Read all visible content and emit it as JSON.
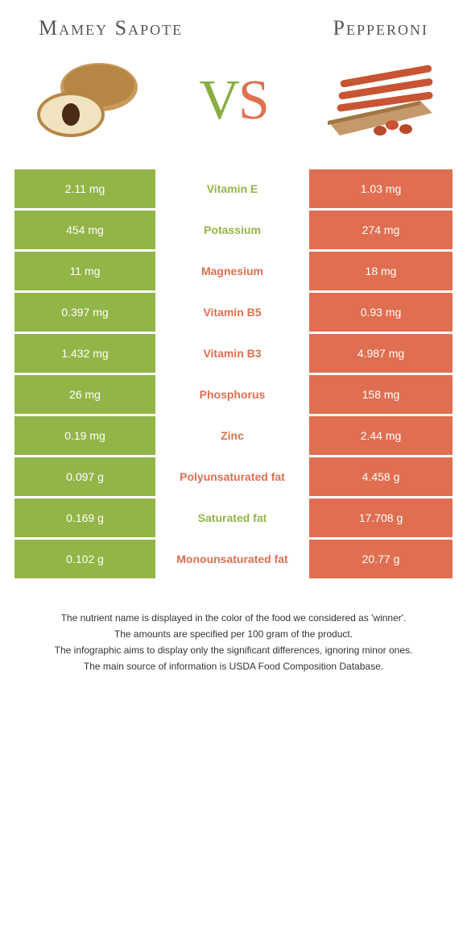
{
  "header": {
    "left_title": "Mamey Sapote",
    "right_title": "Pepperoni",
    "vs_v": "V",
    "vs_s": "S"
  },
  "palette": {
    "left": "#92b548",
    "right": "#df6f50",
    "mid_bg": "#ffffff"
  },
  "nutrients": [
    {
      "name": "Vitamin E",
      "left": "2.11 mg",
      "right": "1.03 mg",
      "winner": "left"
    },
    {
      "name": "Potassium",
      "left": "454 mg",
      "right": "274 mg",
      "winner": "left"
    },
    {
      "name": "Magnesium",
      "left": "11 mg",
      "right": "18 mg",
      "winner": "right"
    },
    {
      "name": "Vitamin B5",
      "left": "0.397 mg",
      "right": "0.93 mg",
      "winner": "right"
    },
    {
      "name": "Vitamin B3",
      "left": "1.432 mg",
      "right": "4.987 mg",
      "winner": "right"
    },
    {
      "name": "Phosphorus",
      "left": "26 mg",
      "right": "158 mg",
      "winner": "right"
    },
    {
      "name": "Zinc",
      "left": "0.19 mg",
      "right": "2.44 mg",
      "winner": "right"
    },
    {
      "name": "Polyunsaturated fat",
      "left": "0.097 g",
      "right": "4.458 g",
      "winner": "right"
    },
    {
      "name": "Saturated fat",
      "left": "0.169 g",
      "right": "17.708 g",
      "winner": "left"
    },
    {
      "name": "Monounsaturated fat",
      "left": "0.102 g",
      "right": "20.77 g",
      "winner": "right"
    }
  ],
  "notes": [
    "The nutrient name is displayed in the color of the food we considered as 'winner'.",
    "The amounts are specified per 100 gram of the product.",
    "The infographic aims to display only the significant differences, ignoring minor ones.",
    "The main source of information is USDA Food Composition Database."
  ]
}
